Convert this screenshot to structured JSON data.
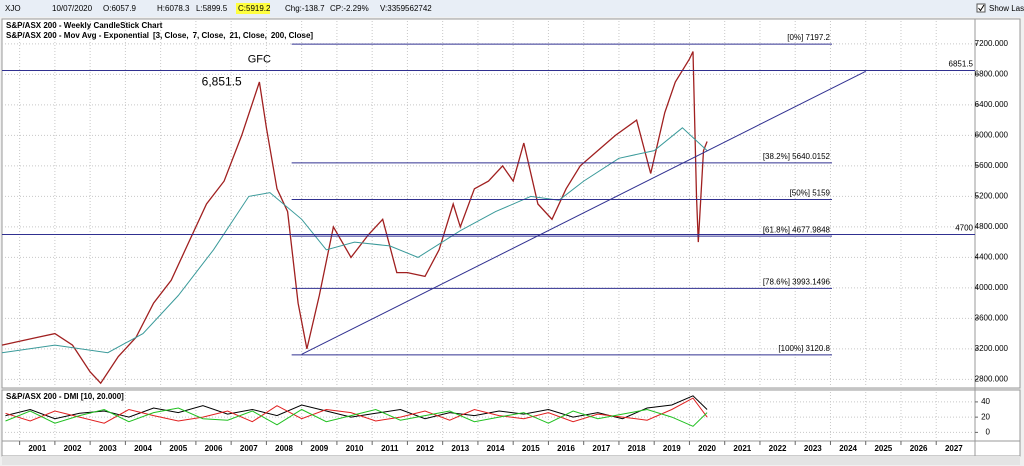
{
  "toolbar": {
    "symbol": "XJO",
    "date": "10/07/2020",
    "open": "O:6057.9",
    "high": "H:6078.3",
    "low": "L:5899.5",
    "close": "C:5919.2",
    "change": "Chg:-138.7",
    "change_pct": "CP:-2.29%",
    "volume": "V:3359562742",
    "show_last": "Show Last"
  },
  "chart_data": [
    {
      "type": "line",
      "title": "S&P/ASX 200 - Weekly CandleStick Chart",
      "ma_legend": [
        {
          "text": "S&P/ASX 200 - Mov Avg - Exponential",
          "color": "#1a1a8c"
        },
        {
          "text": "[3, Close,",
          "color": "#2020c0"
        },
        {
          "text": "7, Close,",
          "color": "#d02020"
        },
        {
          "text": "21, Close,",
          "color": "#8a8a10"
        },
        {
          "text": "200, Close]",
          "color": "#2020c0"
        }
      ],
      "xlim": [
        2000.5,
        2028.1
      ],
      "ylim": [
        2700,
        7500
      ],
      "grid": true,
      "xticks": [
        2001,
        2002,
        2003,
        2004,
        2005,
        2006,
        2007,
        2008,
        2009,
        2010,
        2011,
        2012,
        2013,
        2014,
        2015,
        2016,
        2017,
        2018,
        2019,
        2020,
        2021,
        2022,
        2023,
        2024,
        2025,
        2026,
        2027
      ],
      "yticks": [
        {
          "value": 2800,
          "label": "2800.000"
        },
        {
          "value": 3200,
          "label": "3200.000"
        },
        {
          "value": 3600,
          "label": "3600.000"
        },
        {
          "value": 4000,
          "label": "4000.000"
        },
        {
          "value": 4400,
          "label": "4400.000"
        },
        {
          "value": 4800,
          "label": "4800.000"
        },
        {
          "value": 5200,
          "label": "5200.000"
        },
        {
          "value": 5600,
          "label": "5600.000"
        },
        {
          "value": 6000,
          "label": "6000.000"
        },
        {
          "value": 6400,
          "label": "6400.000"
        },
        {
          "value": 6800,
          "label": "6800.000"
        },
        {
          "value": 7200,
          "label": "7200.000"
        }
      ],
      "series": [
        {
          "color": "#a02020",
          "x": [
            2000.5,
            2001.0,
            2001.5,
            2002.0,
            2002.5,
            2003.0,
            2003.3,
            2003.8,
            2004.3,
            2004.8,
            2005.3,
            2005.8,
            2006.3,
            2006.8,
            2007.3,
            2007.8,
            2008.0,
            2008.3,
            2008.6,
            2008.9,
            2009.15,
            2009.5,
            2009.9,
            2010.4,
            2010.9,
            2011.3,
            2011.7,
            2012.0,
            2012.5,
            2012.9,
            2013.3,
            2013.5,
            2013.9,
            2014.3,
            2014.7,
            2015.0,
            2015.3,
            2015.7,
            2016.1,
            2016.5,
            2016.9,
            2017.4,
            2017.9,
            2018.5,
            2018.9,
            2019.3,
            2019.6,
            2020.0,
            2020.1,
            2020.2,
            2020.25,
            2020.4,
            2020.5
          ],
          "values": [
            3250,
            3300,
            3350,
            3400,
            3250,
            2900,
            2750,
            3100,
            3350,
            3800,
            4100,
            4600,
            5100,
            5400,
            6000,
            6700,
            6100,
            5300,
            5000,
            3800,
            3200,
            3900,
            4800,
            4400,
            4700,
            4900,
            4200,
            4200,
            4150,
            4500,
            5100,
            4800,
            5300,
            5400,
            5600,
            5400,
            5900,
            5100,
            4900,
            5300,
            5600,
            5800,
            6000,
            6200,
            5500,
            6300,
            6700,
            7000,
            7100,
            5200,
            4600,
            5800,
            5919.2
          ]
        },
        {
          "color": "#3a9a9a",
          "x": [
            2000.5,
            2002.0,
            2003.5,
            2004.5,
            2005.5,
            2006.5,
            2007.5,
            2008.1,
            2009.0,
            2009.7,
            2010.5,
            2011.5,
            2012.3,
            2013.5,
            2014.5,
            2015.5,
            2016.3,
            2017.0,
            2018.0,
            2019.0,
            2019.8,
            2020.5
          ],
          "values": [
            3150,
            3250,
            3150,
            3400,
            3900,
            4500,
            5200,
            5250,
            4900,
            4500,
            4600,
            4550,
            4400,
            4750,
            5000,
            5200,
            5150,
            5400,
            5700,
            5800,
            6100,
            5800
          ]
        }
      ],
      "levels": [
        6851.5,
        4700
      ],
      "fib_levels": [
        {
          "label": "[0%] 7197.2",
          "value": 7197.2
        },
        {
          "label": "[38.2%] 5640.0152",
          "value": 5640.0152
        },
        {
          "label": "[50%] 5159",
          "value": 5159
        },
        {
          "label": "[61.8%] 4677.9848",
          "value": 4677.9848
        },
        {
          "label": "[78.6%] 3993.1496",
          "value": 3993.1496
        },
        {
          "label": "[100%] 3120.8",
          "value": 3120.8
        }
      ],
      "trendline": {
        "x": [
          2009.0,
          2025.0
        ],
        "y": [
          3128,
          6840
        ]
      },
      "annotations": [
        "6,851.5",
        "GFC"
      ]
    },
    {
      "type": "line",
      "title": "S&P/ASX 200 - DMI [10, 20.000]",
      "xlim": [
        2000.5,
        2028.1
      ],
      "ylim": [
        -10,
        53
      ],
      "yticks": [
        0,
        20,
        40
      ],
      "grid": true,
      "x": [
        2000.6,
        2001.3,
        2002.0,
        2002.7,
        2003.4,
        2004.1,
        2004.8,
        2005.5,
        2006.2,
        2006.9,
        2007.6,
        2008.3,
        2009.0,
        2009.7,
        2010.4,
        2011.1,
        2011.8,
        2012.5,
        2013.2,
        2013.9,
        2014.6,
        2015.3,
        2016.0,
        2016.7,
        2017.4,
        2018.1,
        2018.8,
        2019.5,
        2020.1,
        2020.5
      ],
      "series": [
        {
          "color": "#000000",
          "values": [
            22,
            30,
            18,
            25,
            28,
            20,
            32,
            26,
            35,
            24,
            30,
            22,
            36,
            28,
            20,
            25,
            30,
            18,
            26,
            22,
            28,
            24,
            30,
            20,
            26,
            18,
            32,
            36,
            48,
            30
          ]
        },
        {
          "color": "#e02020",
          "values": [
            25,
            15,
            28,
            20,
            12,
            30,
            22,
            15,
            20,
            28,
            14,
            35,
            18,
            30,
            26,
            15,
            20,
            28,
            16,
            30,
            22,
            18,
            26,
            14,
            24,
            20,
            16,
            30,
            45,
            20
          ]
        },
        {
          "color": "#20c020",
          "values": [
            15,
            28,
            12,
            22,
            30,
            14,
            26,
            32,
            18,
            16,
            28,
            10,
            30,
            14,
            22,
            30,
            16,
            22,
            28,
            14,
            20,
            26,
            12,
            28,
            18,
            24,
            30,
            20,
            8,
            26
          ]
        }
      ]
    }
  ]
}
